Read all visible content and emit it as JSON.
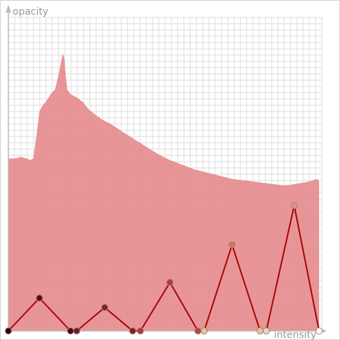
{
  "chart_data": {
    "type": "area",
    "x_axis_label": "intensity",
    "y_axis_label": "opacity",
    "xlim": [
      0,
      1
    ],
    "ylim": [
      0,
      1
    ],
    "grid": true,
    "histogram": {
      "x": [
        0.0,
        0.02,
        0.04,
        0.06,
        0.07,
        0.08,
        0.09,
        0.1,
        0.11,
        0.12,
        0.13,
        0.14,
        0.15,
        0.16,
        0.17,
        0.175,
        0.18,
        0.185,
        0.19,
        0.2,
        0.22,
        0.24,
        0.26,
        0.28,
        0.3,
        0.33,
        0.36,
        0.4,
        0.44,
        0.48,
        0.52,
        0.56,
        0.6,
        0.64,
        0.68,
        0.72,
        0.76,
        0.8,
        0.84,
        0.88,
        0.9,
        0.93,
        0.96,
        0.98,
        0.99,
        1.0
      ],
      "y": [
        0.55,
        0.55,
        0.555,
        0.55,
        0.545,
        0.55,
        0.62,
        0.7,
        0.72,
        0.73,
        0.745,
        0.76,
        0.77,
        0.81,
        0.86,
        0.885,
        0.87,
        0.81,
        0.77,
        0.755,
        0.745,
        0.73,
        0.705,
        0.69,
        0.675,
        0.66,
        0.64,
        0.615,
        0.59,
        0.565,
        0.545,
        0.53,
        0.515,
        0.505,
        0.495,
        0.485,
        0.48,
        0.475,
        0.47,
        0.465,
        0.465,
        0.47,
        0.475,
        0.48,
        0.485,
        0.48
      ],
      "color": "#e58a8d"
    },
    "control_points": [
      {
        "x": 0.0,
        "y": 0.0,
        "color": "#3a0000"
      },
      {
        "x": 0.1,
        "y": 0.105,
        "color": "#6a0010"
      },
      {
        "x": 0.2,
        "y": 0.0,
        "color": "#5a0010"
      },
      {
        "x": 0.22,
        "y": 0.0,
        "color": "#7a1520"
      },
      {
        "x": 0.31,
        "y": 0.075,
        "color": "#8a1a25"
      },
      {
        "x": 0.4,
        "y": 0.0,
        "color": "#8a1a25"
      },
      {
        "x": 0.425,
        "y": 0.0,
        "color": "#b83535"
      },
      {
        "x": 0.52,
        "y": 0.155,
        "color": "#c03535"
      },
      {
        "x": 0.61,
        "y": 0.0,
        "color": "#c04040"
      },
      {
        "x": 0.63,
        "y": 0.0,
        "color": "#f0c090"
      },
      {
        "x": 0.72,
        "y": 0.275,
        "color": "#e07060"
      },
      {
        "x": 0.81,
        "y": 0.0,
        "color": "#f2c090"
      },
      {
        "x": 0.83,
        "y": 0.0,
        "color": "#f0d0c0"
      },
      {
        "x": 0.92,
        "y": 0.4,
        "color": "#e09080"
      },
      {
        "x": 1.0,
        "y": 0.0,
        "color": "#ffffff"
      }
    ],
    "line_color": "#aa0000"
  }
}
